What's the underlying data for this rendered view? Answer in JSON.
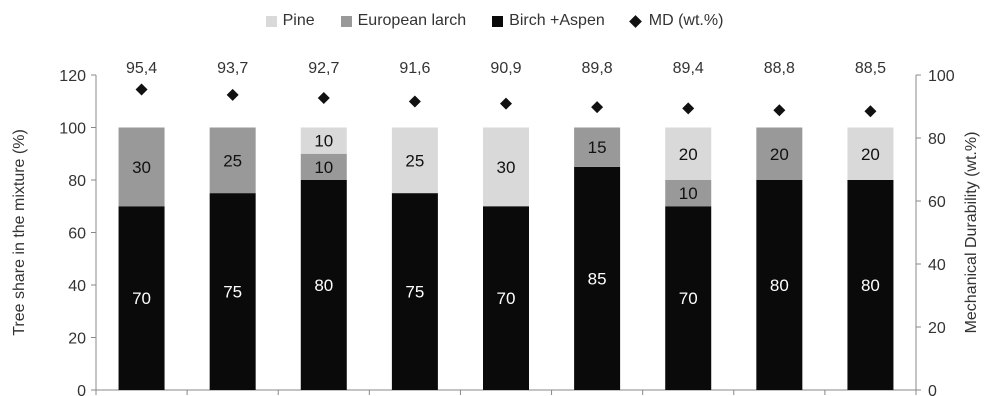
{
  "legend": {
    "pine": "Pine",
    "larch": "European larch",
    "birch": "Birch +Aspen",
    "md": "MD (wt.%)"
  },
  "colors": {
    "pine": "#d9d9d9",
    "larch": "#999999",
    "birch": "#0a0a0a",
    "md": "#111111"
  },
  "chart_data": {
    "type": "bar",
    "stacked": true,
    "categories": [
      "",
      "",
      "",
      "",
      "",
      "",
      "",
      "",
      ""
    ],
    "series": [
      {
        "name": "Birch +Aspen",
        "key": "birch",
        "values": [
          70,
          75,
          80,
          75,
          70,
          85,
          70,
          80,
          80
        ]
      },
      {
        "name": "European larch",
        "key": "larch",
        "values": [
          30,
          25,
          10,
          0,
          0,
          15,
          10,
          20,
          0
        ]
      },
      {
        "name": "Pine",
        "key": "pine",
        "values": [
          0,
          0,
          10,
          25,
          30,
          0,
          20,
          0,
          20
        ]
      }
    ],
    "secondary_series": {
      "name": "MD (wt.%)",
      "type": "scatter",
      "marker": "diamond",
      "values": [
        95.4,
        93.7,
        92.7,
        91.6,
        90.9,
        89.8,
        89.4,
        88.8,
        88.5
      ],
      "labels": [
        "95,4",
        "93,7",
        "92,7",
        "91,6",
        "90,9",
        "89,8",
        "89,4",
        "88,8",
        "88,5"
      ]
    },
    "ylabel": "Tree share in the mixture (%)",
    "ylabel_right": "Mechanical Durability (wt.%)",
    "ylim": [
      0,
      120
    ],
    "yticks": [
      0,
      20,
      40,
      60,
      80,
      100,
      120
    ],
    "ylim_right": [
      0,
      100
    ],
    "yticks_right": [
      0,
      20,
      40,
      60,
      80,
      100
    ],
    "grid": false,
    "legend_position": "top-center"
  }
}
